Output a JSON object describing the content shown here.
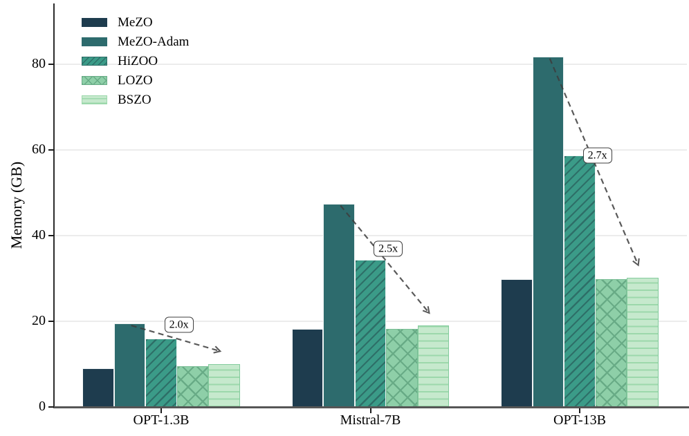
{
  "chart_data": {
    "type": "bar",
    "title": "",
    "xlabel": "",
    "ylabel": "Memory (GB)",
    "categories": [
      "OPT-1.3B",
      "Mistral-7B",
      "OPT-13B"
    ],
    "series": [
      {
        "name": "MeZO",
        "values": [
          9.0,
          18.2,
          29.9
        ],
        "color": "#1e3c4e",
        "hatch": "none",
        "hatch_color": "",
        "edge": "#f2f5f6"
      },
      {
        "name": "MeZO-Adam",
        "values": [
          19.5,
          47.5,
          81.8
        ],
        "color": "#2d6b6d",
        "hatch": "none",
        "hatch_color": "",
        "edge": "#eef3f3"
      },
      {
        "name": "HiZOO",
        "values": [
          15.9,
          34.4,
          58.7
        ],
        "color": "#3b9b88",
        "hatch": "/",
        "hatch_color": "#2e6f68",
        "edge": "#eef6f4"
      },
      {
        "name": "LOZO",
        "values": [
          9.5,
          18.3,
          29.9
        ],
        "color": "#8ecfa8",
        "hatch": "x",
        "hatch_color": "#68ab86",
        "edge": "#79bd95"
      },
      {
        "name": "BSZO",
        "values": [
          10.0,
          19.0,
          30.2
        ],
        "color": "#c6e9cd",
        "hatch": "-",
        "hatch_color": "#9cd8ab",
        "edge": "#83cb9d"
      }
    ],
    "yticks": [
      0,
      20,
      40,
      60,
      80
    ],
    "ylim": [
      0,
      94
    ],
    "grid": "horizontal",
    "legend_position": "upper-left",
    "annotations": [
      {
        "label": "2.0x",
        "group": 0,
        "from_series": "MeZO-Adam",
        "to_series": "BSZO"
      },
      {
        "label": "2.5x",
        "group": 1,
        "from_series": "MeZO-Adam",
        "to_series": "BSZO"
      },
      {
        "label": "2.7x",
        "group": 2,
        "from_series": "MeZO-Adam",
        "to_series": "BSZO"
      }
    ],
    "arrow_color": "#3d3d3d"
  }
}
